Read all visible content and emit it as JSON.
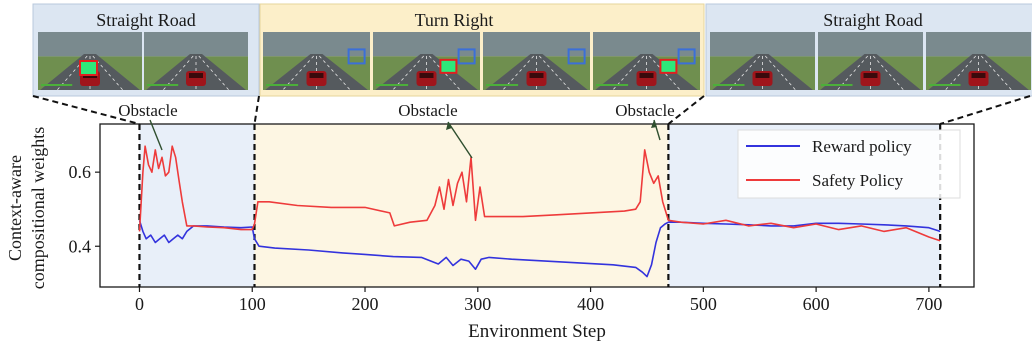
{
  "figure": {
    "panels": [
      {
        "label": "Straight Road",
        "bg": "#dce6f2",
        "frames": 2,
        "markers": [
          "red-box-obstacle",
          "none"
        ]
      },
      {
        "label": "Turn Right",
        "bg": "#fcefc9",
        "frames": 4,
        "markers": [
          "blue-box",
          "blue-box-red-box",
          "blue-box",
          "blue-box-red-box"
        ]
      },
      {
        "label": "Straight Road",
        "bg": "#dce6f2",
        "frames": 3,
        "markers": [
          "none",
          "none",
          "none"
        ]
      }
    ],
    "annotations": [
      "Obstacle",
      "Obstacle",
      "Obstacle"
    ]
  },
  "chart_data": {
    "type": "line",
    "xlabel": "Environment Step",
    "ylabel_lines": [
      "Context-aware",
      "compositional weights"
    ],
    "xlim": [
      -35,
      740
    ],
    "ylim": [
      0.29,
      0.73
    ],
    "xticks": [
      0,
      100,
      200,
      300,
      400,
      500,
      600,
      700
    ],
    "yticks": [
      0.4,
      0.6
    ],
    "ytick_labels": [
      "0.4",
      "0.6"
    ],
    "grid": false,
    "legend_position": "top-right",
    "regions": [
      {
        "x0": 0,
        "x1": 102,
        "color": "#e8eff9"
      },
      {
        "x0": 102,
        "x1": 469,
        "color": "#fdf6e3"
      },
      {
        "x0": 469,
        "x1": 710,
        "color": "#e8eff9"
      }
    ],
    "dashed_boundaries": [
      0,
      102,
      469,
      710
    ],
    "series": [
      {
        "name": "Reward policy",
        "color": "#3333dd",
        "x": [
          0,
          3,
          6,
          10,
          14,
          18,
          22,
          26,
          30,
          34,
          38,
          42,
          48,
          60,
          75,
          90,
          100,
          102,
          106,
          120,
          150,
          180,
          200,
          225,
          250,
          265,
          272,
          278,
          285,
          292,
          298,
          303,
          310,
          330,
          360,
          390,
          420,
          440,
          446,
          450,
          454,
          458,
          462,
          466,
          469,
          480,
          500,
          520,
          540,
          560,
          580,
          600,
          620,
          640,
          660,
          680,
          700,
          710
        ],
        "y": [
          0.47,
          0.44,
          0.42,
          0.43,
          0.41,
          0.42,
          0.43,
          0.41,
          0.42,
          0.43,
          0.42,
          0.44,
          0.455,
          0.455,
          0.452,
          0.45,
          0.452,
          0.42,
          0.4,
          0.395,
          0.39,
          0.382,
          0.378,
          0.372,
          0.37,
          0.352,
          0.37,
          0.348,
          0.365,
          0.36,
          0.338,
          0.365,
          0.37,
          0.365,
          0.36,
          0.355,
          0.35,
          0.343,
          0.33,
          0.318,
          0.35,
          0.41,
          0.45,
          0.46,
          0.465,
          0.465,
          0.462,
          0.46,
          0.458,
          0.455,
          0.455,
          0.462,
          0.462,
          0.46,
          0.458,
          0.455,
          0.45,
          0.44
        ]
      },
      {
        "name": "Safety Policy",
        "color": "#ee3b3b",
        "x": [
          0,
          3,
          5,
          8,
          11,
          14,
          17,
          20,
          23,
          26,
          29,
          32,
          35,
          38,
          42,
          48,
          60,
          75,
          90,
          100,
          102,
          105,
          115,
          140,
          170,
          200,
          222,
          226,
          240,
          255,
          262,
          266,
          270,
          274,
          278,
          282,
          286,
          290,
          294,
          298,
          302,
          306,
          312,
          340,
          370,
          400,
          430,
          440,
          444,
          448,
          452,
          456,
          460,
          464,
          469,
          480,
          500,
          520,
          540,
          560,
          580,
          600,
          620,
          640,
          660,
          680,
          700,
          710
        ],
        "y": [
          0.44,
          0.6,
          0.67,
          0.62,
          0.6,
          0.66,
          0.61,
          0.64,
          0.59,
          0.6,
          0.67,
          0.64,
          0.58,
          0.52,
          0.455,
          0.455,
          0.452,
          0.45,
          0.445,
          0.445,
          0.46,
          0.52,
          0.52,
          0.51,
          0.505,
          0.505,
          0.49,
          0.455,
          0.465,
          0.47,
          0.51,
          0.56,
          0.5,
          0.58,
          0.51,
          0.57,
          0.6,
          0.52,
          0.64,
          0.47,
          0.56,
          0.48,
          0.48,
          0.48,
          0.485,
          0.49,
          0.495,
          0.5,
          0.52,
          0.66,
          0.6,
          0.57,
          0.59,
          0.52,
          0.47,
          0.465,
          0.46,
          0.47,
          0.455,
          0.462,
          0.45,
          0.46,
          0.445,
          0.455,
          0.44,
          0.45,
          0.425,
          0.415
        ]
      }
    ]
  }
}
